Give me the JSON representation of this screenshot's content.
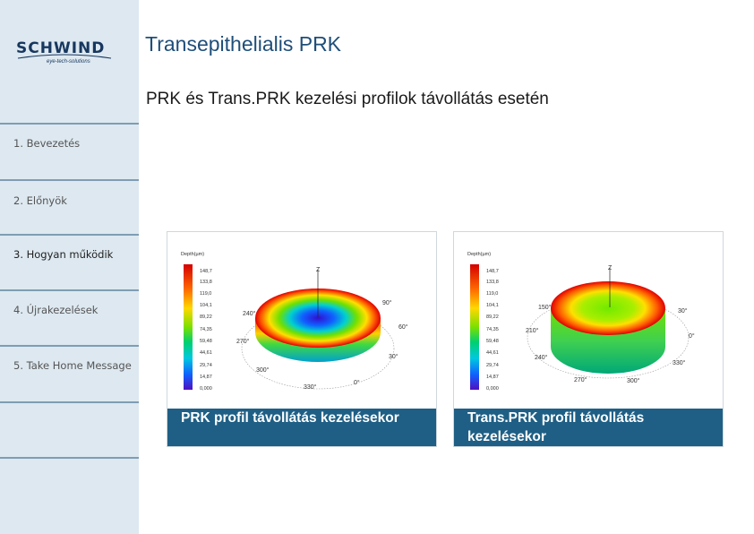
{
  "header": {
    "title": "Transepithelialis PRK",
    "subtitle": "PRK és Trans.PRK kezelési profilok távollátás esetén"
  },
  "logo": {
    "name": "SCHWIND",
    "tagline": "eye-tech-solutions"
  },
  "sidebar": {
    "items": [
      {
        "label": "1. Bevezetés"
      },
      {
        "label": "2. Előnyök"
      },
      {
        "label": "3. Hogyan működik"
      },
      {
        "label": "4. Újrakezelések"
      },
      {
        "label": "5. Take Home Message"
      }
    ]
  },
  "figures": [
    {
      "caption": "PRK profil távollátás kezelésekor",
      "legend_title": "Depth(µm)",
      "legend_values": [
        "148,7",
        "133,8",
        "119,0",
        "104,1",
        "89,22",
        "74,35",
        "59,48",
        "44,61",
        "29,74",
        "14,87",
        "0,000"
      ],
      "angle_labels": [
        "240°",
        "270°",
        "300°",
        "330°",
        "0°",
        "30°",
        "60°",
        "90°"
      ],
      "axis_labels": [
        "Z",
        "Y",
        "X"
      ]
    },
    {
      "caption": "Trans.PRK profil távollátás kezelésekor",
      "legend_title": "Depth(µm)",
      "legend_values": [
        "148,7",
        "133,8",
        "119,0",
        "104,1",
        "89,22",
        "74,35",
        "59,48",
        "44,61",
        "29,74",
        "14,87",
        "0,000"
      ],
      "angle_labels": [
        "150°",
        "210°",
        "240°",
        "270°",
        "300°",
        "330°",
        "0°",
        "30°"
      ],
      "axis_labels": [
        "Z",
        "Y",
        "X"
      ]
    }
  ],
  "colors": {
    "sidebar_bg": "#dde8f0",
    "title": "#1f4e79",
    "caption_bg": "#1f5f85"
  }
}
